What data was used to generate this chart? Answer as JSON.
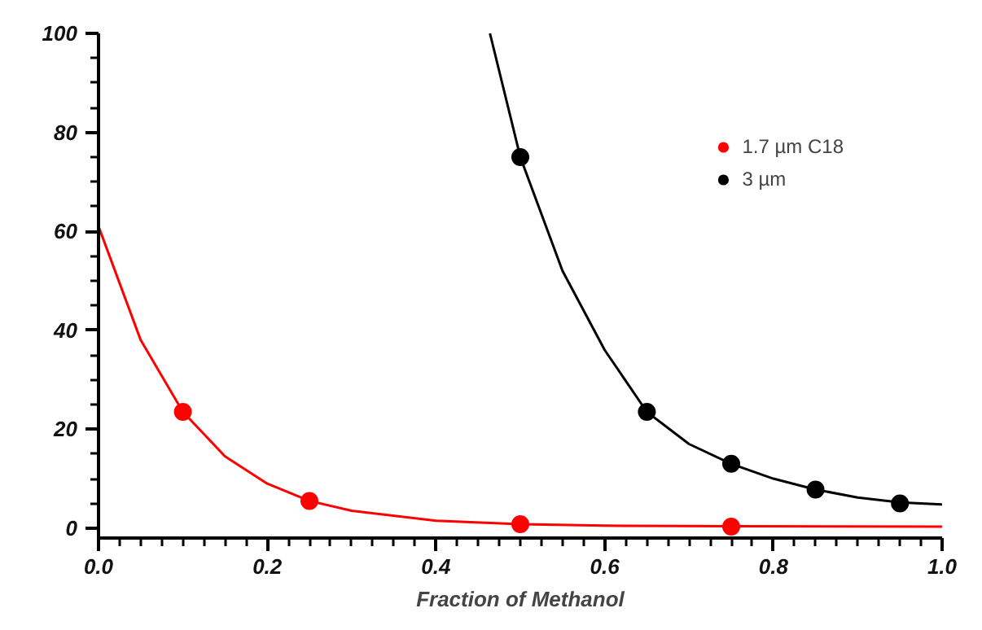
{
  "chart_data": {
    "type": "scatter",
    "xlabel": "Fraction of Methanol",
    "xlim": [
      0.0,
      1.0
    ],
    "ylim": [
      -2,
      100
    ],
    "xticks": [
      {
        "value": 0,
        "label": "0.0"
      },
      0.2,
      0.4,
      0.6,
      0.8,
      {
        "value": 1,
        "label": "1.0"
      }
    ],
    "yticks": [
      0,
      20,
      40,
      60,
      80,
      100
    ],
    "grid": false,
    "legend": "top right",
    "marker": "circle",
    "series": [
      {
        "name": "1.7 µm C18",
        "color": "#ff0000",
        "x": [
          0.1,
          0.25,
          0.5,
          0.75
        ],
        "values": [
          23.5,
          5.5,
          0.8,
          0.3
        ]
      },
      {
        "name": "3 µm",
        "color": "#000000",
        "x": [
          0.5,
          0.65,
          0.75,
          0.85,
          0.95
        ],
        "values": [
          75,
          23.5,
          13,
          7.8,
          5
        ]
      },
      {
        "type": "line",
        "marker": "none",
        "color": "#ff0000",
        "x": [
          0,
          0.05,
          0.1,
          0.15,
          0.2,
          0.25,
          0.3,
          0.4,
          0.5,
          0.6,
          0.75,
          1.0
        ],
        "values": [
          61,
          38,
          23.5,
          14.5,
          9,
          5.5,
          3.5,
          1.5,
          0.8,
          0.5,
          0.4,
          0.3
        ]
      },
      {
        "type": "line",
        "marker": "none",
        "color": "#000000",
        "x": [
          0.464,
          0.5,
          0.55,
          0.6,
          0.65,
          0.7,
          0.75,
          0.8,
          0.85,
          0.9,
          0.95,
          1.0
        ],
        "values": [
          100,
          75,
          52,
          36,
          23.5,
          17,
          13,
          10,
          7.8,
          6.2,
          5.2,
          4.8
        ]
      }
    ]
  }
}
